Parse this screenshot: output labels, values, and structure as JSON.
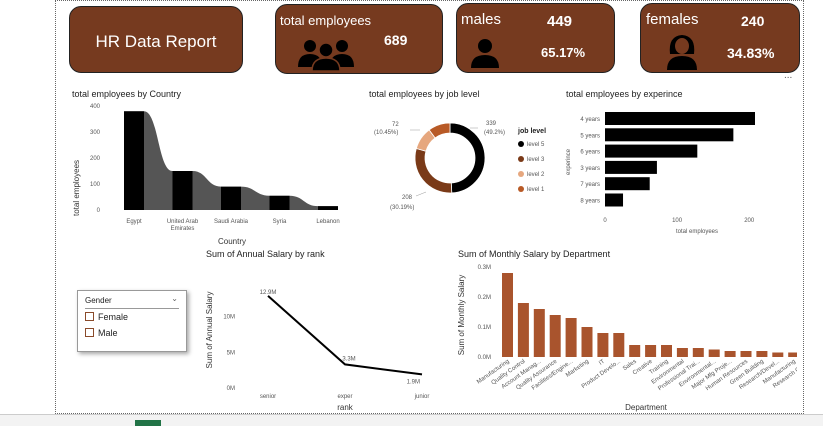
{
  "cards": {
    "title": "HR Data Report",
    "total": {
      "label": "total employees",
      "value": "689"
    },
    "males": {
      "label": "males",
      "value": "449",
      "pct": "65.17%"
    },
    "females": {
      "label": "females",
      "value": "240",
      "pct": "34.83%"
    }
  },
  "more_options": "...",
  "country_chart": {
    "title": "total employees by Country",
    "ylabel": "total employees",
    "xlabel": "Country",
    "ticks": [
      "0",
      "100",
      "200",
      "300",
      "400"
    ]
  },
  "level_chart": {
    "title": "total employees by job level",
    "legend_title": "job level",
    "legend": [
      "level 5",
      "level 3",
      "level 2",
      "level 1"
    ],
    "labels": {
      "top_right": [
        "339",
        "(49.2%)"
      ],
      "top_left": [
        "72",
        "(10.45%)"
      ],
      "bottom_left": [
        "208",
        "(30.19%)"
      ]
    }
  },
  "exp_chart": {
    "title": "total employees by experince",
    "ylabel": "experince",
    "xlabel": "total employees",
    "xticks": [
      "0",
      "100",
      "200"
    ]
  },
  "rank_chart": {
    "title": "Sum of Annual Salary by rank",
    "ylabel": "Sum of Annual Salary",
    "xlabel": "rank",
    "yticks": [
      "0M",
      "5M",
      "10M"
    ],
    "data_labels": [
      "12.9M",
      "3.3M",
      "1.9M"
    ]
  },
  "dept_chart": {
    "title": "Sum of Monthly Salary by Department",
    "ylabel": "Sum of Monthly Salary",
    "xlabel": "Department",
    "yticks": [
      "0.0M",
      "0.1M",
      "0.2M",
      "0.3M"
    ]
  },
  "slicer": {
    "title": "Gender",
    "options": [
      "Female",
      "Male"
    ]
  },
  "colors": {
    "brand": "#763a1f",
    "bar": "#a9542d",
    "dark": "#000000",
    "gray": "#555555",
    "l3": "#7a3a18",
    "l2": "#e6a77e",
    "l1": "#b85a26"
  },
  "chart_data": [
    {
      "type": "area",
      "title": "total employees by Country",
      "categories": [
        "Egypt",
        "United Arab Emirates",
        "Saudi Arabia",
        "Syria",
        "Lebanon"
      ],
      "values": [
        380,
        150,
        90,
        55,
        15
      ],
      "xlabel": "Country",
      "ylabel": "total employees",
      "ylim": [
        0,
        400
      ]
    },
    {
      "type": "pie",
      "title": "total employees by job level",
      "categories": [
        "level 5",
        "level 3",
        "level 2",
        "level 1"
      ],
      "values": [
        339,
        208,
        72,
        70
      ]
    },
    {
      "type": "bar",
      "title": "total employees by experince",
      "categories": [
        "4 years",
        "5 years",
        "6 years",
        "3 years",
        "7 years",
        "8 years"
      ],
      "values": [
        208,
        178,
        128,
        72,
        62,
        25
      ],
      "xlabel": "total employees",
      "ylabel": "experince",
      "xlim": [
        0,
        220
      ]
    },
    {
      "type": "line",
      "title": "Sum of Annual Salary by rank",
      "categories": [
        "senior",
        "exper",
        "junior"
      ],
      "values": [
        12.9,
        3.3,
        1.9
      ],
      "xlabel": "rank",
      "ylabel": "Sum of Annual Salary",
      "ylim": [
        0,
        14
      ]
    },
    {
      "type": "bar",
      "title": "Sum of Monthly Salary by Department",
      "categories": [
        "Manufacturing",
        "Quality Control",
        "Account Manag...",
        "Quality Assurance",
        "Facilities/Engine...",
        "Marketing",
        "IT",
        "Product Develo...",
        "Sales",
        "Creative",
        "Training",
        "Environmental",
        "Professional Trai...",
        "Environmental...",
        "Major Mfg Proje...",
        "Human Resources",
        "Green Building",
        "Research/Devel...",
        "Manufacturing",
        "Research Center"
      ],
      "values": [
        0.28,
        0.18,
        0.16,
        0.14,
        0.13,
        0.1,
        0.08,
        0.08,
        0.04,
        0.04,
        0.04,
        0.03,
        0.03,
        0.025,
        0.02,
        0.02,
        0.02,
        0.015,
        0.015,
        0.01
      ],
      "xlabel": "Department",
      "ylabel": "Sum of Monthly Salary",
      "ylim": [
        0,
        0.3
      ]
    }
  ]
}
